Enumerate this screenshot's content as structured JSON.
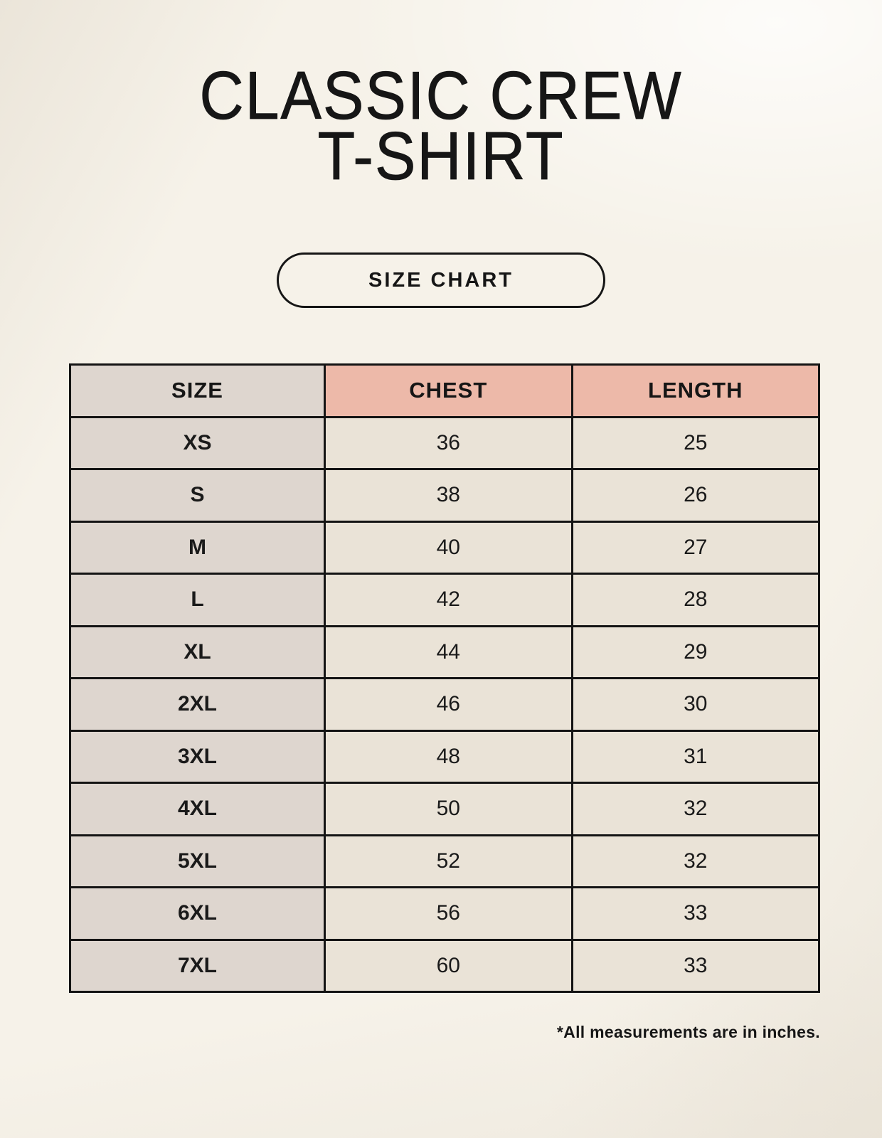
{
  "title": {
    "line1": "CLASSIC CREW",
    "line2": "T-SHIRT"
  },
  "badge": {
    "label": "SIZE CHART"
  },
  "footnote": "*All measurements are in inches.",
  "colors": {
    "background": "#f6f2e9",
    "table_border": "#141414",
    "size_column_fill": "#ded6cf",
    "measure_header_fill": "#edb9a9",
    "value_cell_fill": "#eae3d7",
    "text": "#1a1a1a"
  },
  "chart_data": {
    "type": "table",
    "title": "SIZE CHART",
    "units": "inches",
    "columns": [
      "SIZE",
      "CHEST",
      "LENGTH"
    ],
    "rows": [
      [
        "XS",
        "36",
        "25"
      ],
      [
        "S",
        "38",
        "26"
      ],
      [
        "M",
        "40",
        "27"
      ],
      [
        "L",
        "42",
        "28"
      ],
      [
        "XL",
        "44",
        "29"
      ],
      [
        "2XL",
        "46",
        "30"
      ],
      [
        "3XL",
        "48",
        "31"
      ],
      [
        "4XL",
        "50",
        "32"
      ],
      [
        "5XL",
        "52",
        "32"
      ],
      [
        "6XL",
        "56",
        "33"
      ],
      [
        "7XL",
        "60",
        "33"
      ]
    ]
  }
}
